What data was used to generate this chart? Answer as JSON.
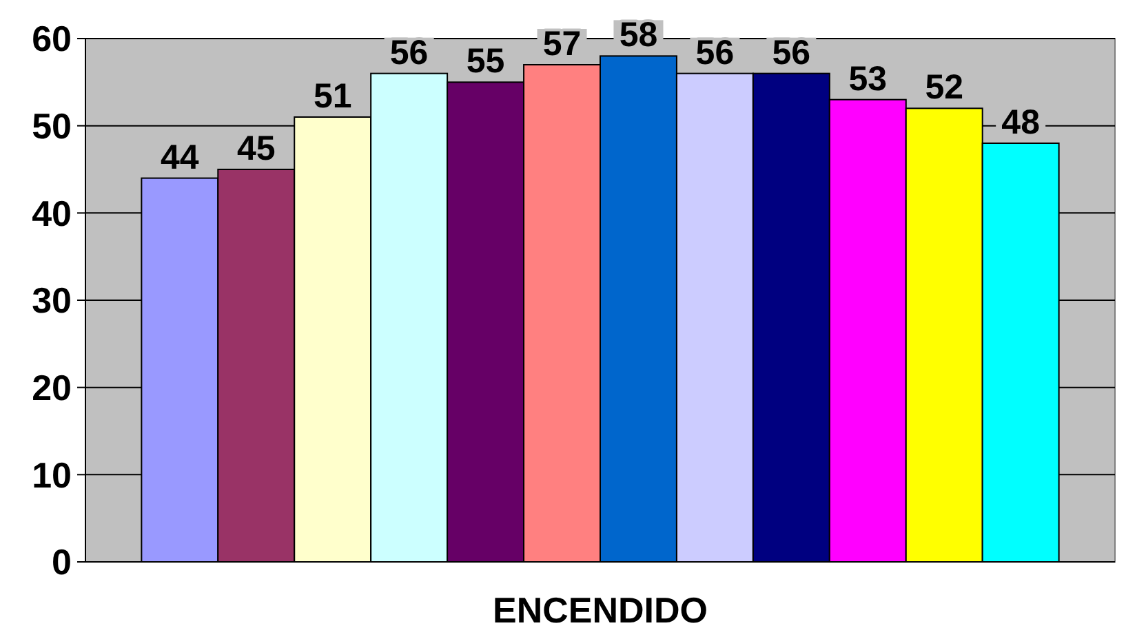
{
  "chart_data": {
    "type": "bar",
    "categories": [
      "ENCENDIDO"
    ],
    "series": [
      {
        "color": "#9999ff",
        "values": [
          44
        ]
      },
      {
        "color": "#993366",
        "values": [
          45
        ]
      },
      {
        "color": "#ffffcc",
        "values": [
          51
        ]
      },
      {
        "color": "#ccffff",
        "values": [
          56
        ]
      },
      {
        "color": "#660066",
        "values": [
          55
        ]
      },
      {
        "color": "#ff8080",
        "values": [
          57
        ]
      },
      {
        "color": "#0066cc",
        "values": [
          58
        ]
      },
      {
        "color": "#ccccff",
        "values": [
          56
        ]
      },
      {
        "color": "#000080",
        "values": [
          56
        ]
      },
      {
        "color": "#ff00ff",
        "values": [
          53
        ]
      },
      {
        "color": "#ffff00",
        "values": [
          52
        ]
      },
      {
        "color": "#00ffff",
        "values": [
          48
        ]
      }
    ],
    "ylim": [
      0,
      60
    ],
    "yticks": [
      0,
      10,
      20,
      30,
      40,
      50,
      60
    ],
    "grid": "y",
    "data_labels": true
  }
}
